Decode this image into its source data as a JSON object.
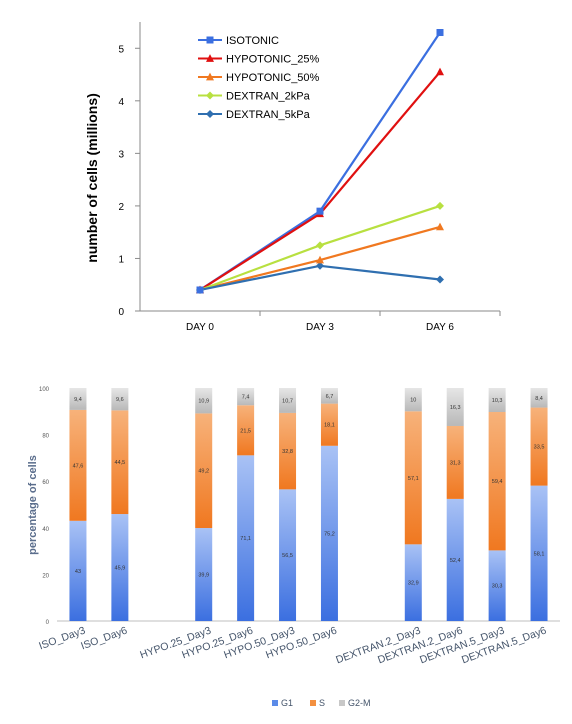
{
  "chart_data": [
    {
      "type": "line",
      "title": "",
      "xlabel": "",
      "ylabel": "number of cells (millions)",
      "categories": [
        "DAY 0",
        "DAY 3",
        "DAY 6"
      ],
      "ylim": [
        0,
        5.5
      ],
      "yticks": [
        0,
        1,
        2,
        3,
        4,
        5
      ],
      "grid": false,
      "legend_position": "top-left",
      "series": [
        {
          "name": "ISOTONIC",
          "values": [
            0.4,
            1.9,
            5.3
          ],
          "color": "#3b6fe0",
          "marker": "square"
        },
        {
          "name": "HYPOTONIC_25%",
          "values": [
            0.4,
            1.85,
            4.55
          ],
          "color": "#e01010",
          "marker": "triangle"
        },
        {
          "name": "HYPOTONIC_50%",
          "values": [
            0.4,
            0.97,
            1.6
          ],
          "color": "#f07820",
          "marker": "triangle"
        },
        {
          "name": "DEXTRAN_2kPa",
          "values": [
            0.4,
            1.25,
            2.0
          ],
          "color": "#b8e040",
          "marker": "diamond"
        },
        {
          "name": "DEXTRAN_5kPa",
          "values": [
            0.4,
            0.86,
            0.6
          ],
          "color": "#2f6fb0",
          "marker": "diamond"
        }
      ]
    },
    {
      "type": "bar",
      "stacked": true,
      "title": "",
      "xlabel": "",
      "ylabel": "percentage of cells",
      "ylim": [
        0,
        100
      ],
      "yticks": [
        0,
        20,
        40,
        60,
        80,
        100
      ],
      "grid": false,
      "legend_position": "bottom",
      "categories": [
        "ISO_Day3",
        "ISO_Day6",
        "HYPO.25_Day3",
        "HYPO.25_Day6",
        "HYPO.50_Day3",
        "HYPO.50_Day6",
        "DEXTRAN.2_Day3",
        "DEXTRAN.2_Day6",
        "DEXTRAN.5_Day3",
        "DEXTRAN.5_Day6"
      ],
      "series": [
        {
          "name": "G1",
          "color": "#5b8be8",
          "values": [
            43,
            45.9,
            39.9,
            71.1,
            56.5,
            75.2,
            32.9,
            52.4,
            30.3,
            58.1
          ],
          "labels": [
            "43",
            "45,9",
            "39,9",
            "71,1",
            "56,5",
            "75,2",
            "32,9",
            "52,4",
            "30,3",
            "58,1"
          ]
        },
        {
          "name": "S",
          "color": "#f39040",
          "values": [
            47.6,
            44.5,
            49.2,
            21.5,
            32.8,
            18.1,
            57.1,
            31.3,
            59.4,
            33.5
          ],
          "labels": [
            "47,6",
            "44,5",
            "49,2",
            "21,5",
            "32,8",
            "18,1",
            "57,1",
            "31,3",
            "59,4",
            "33,5"
          ]
        },
        {
          "name": "G2-M",
          "color": "#c8c8c8",
          "values": [
            9.4,
            9.6,
            10.9,
            7.4,
            10.7,
            6.7,
            10,
            16.3,
            10.3,
            8.4
          ],
          "labels": [
            "9,4",
            "9,6",
            "10,9",
            "7,4",
            "10,7",
            "6,7",
            "10",
            "16,3",
            "10,3",
            "8,4"
          ]
        }
      ]
    }
  ]
}
